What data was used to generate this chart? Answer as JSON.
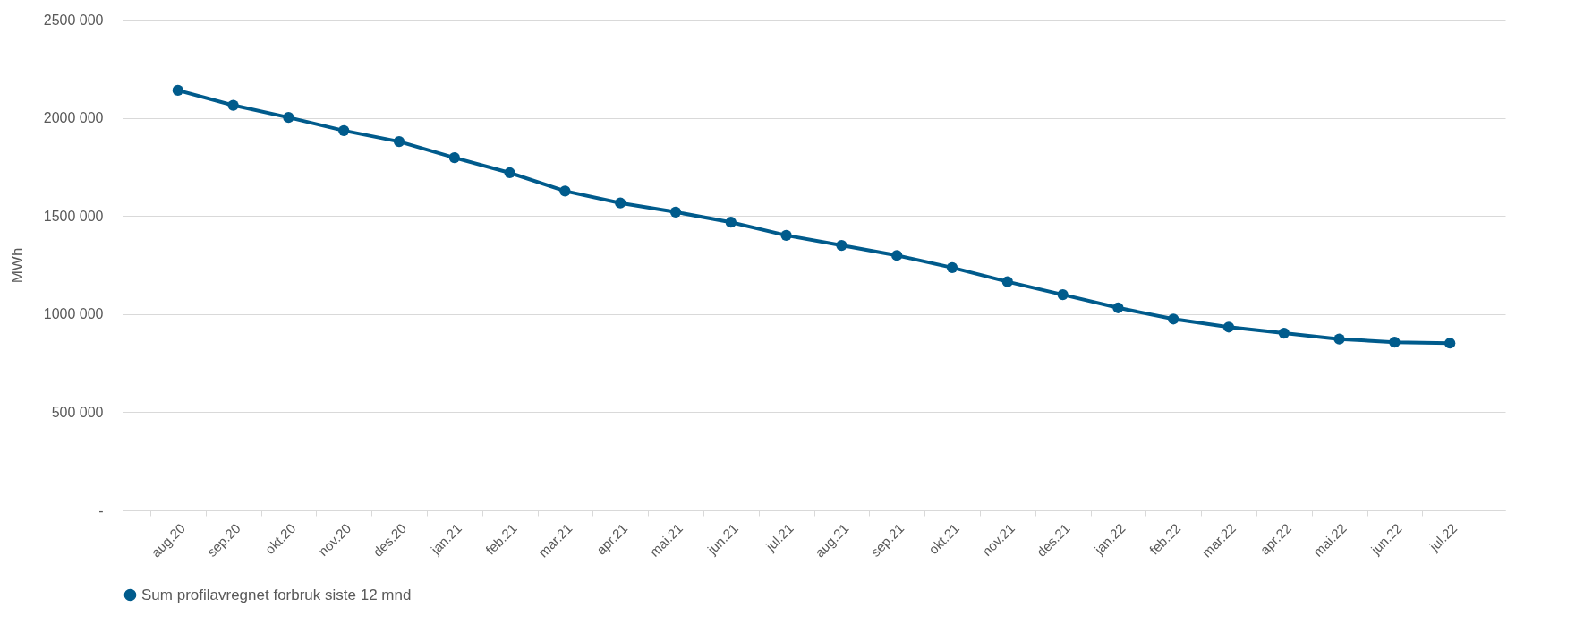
{
  "chart_data": {
    "type": "line",
    "ylabel": "MWh",
    "categories": [
      "aug.20",
      "sep.20",
      "okt.20",
      "nov.20",
      "des.20",
      "jan.21",
      "feb.21",
      "mar.21",
      "apr.21",
      "mai.21",
      "jun.21",
      "jul.21",
      "aug.21",
      "sep.21",
      "okt.21",
      "nov.21",
      "des.21",
      "jan.22",
      "feb.22",
      "mar.22",
      "apr.22",
      "mai.22",
      "jun.22",
      "jul.22"
    ],
    "series": [
      {
        "name": "Sum profilavregnet forbruk siste 12 mnd",
        "color": "#005b8c",
        "values": [
          2140000,
          2064000,
          2002000,
          1935000,
          1879000,
          1797000,
          1720000,
          1627000,
          1566000,
          1520000,
          1468000,
          1401000,
          1350000,
          1299000,
          1237000,
          1165000,
          1099000,
          1032000,
          975000,
          934000,
          903000,
          873000,
          857000,
          852000
        ]
      }
    ],
    "ylim": [
      0,
      2500000
    ],
    "yticks": [
      {
        "value": 0,
        "label": "-"
      },
      {
        "value": 500000,
        "label": "500 000"
      },
      {
        "value": 1000000,
        "label": "1000 000"
      },
      {
        "value": 1500000,
        "label": "1500 000"
      },
      {
        "value": 2000000,
        "label": "2000 000"
      },
      {
        "value": 2500000,
        "label": "2500 000"
      }
    ],
    "grid": "y",
    "legend": "bottom",
    "marker": "circle",
    "line_style": "solid"
  }
}
